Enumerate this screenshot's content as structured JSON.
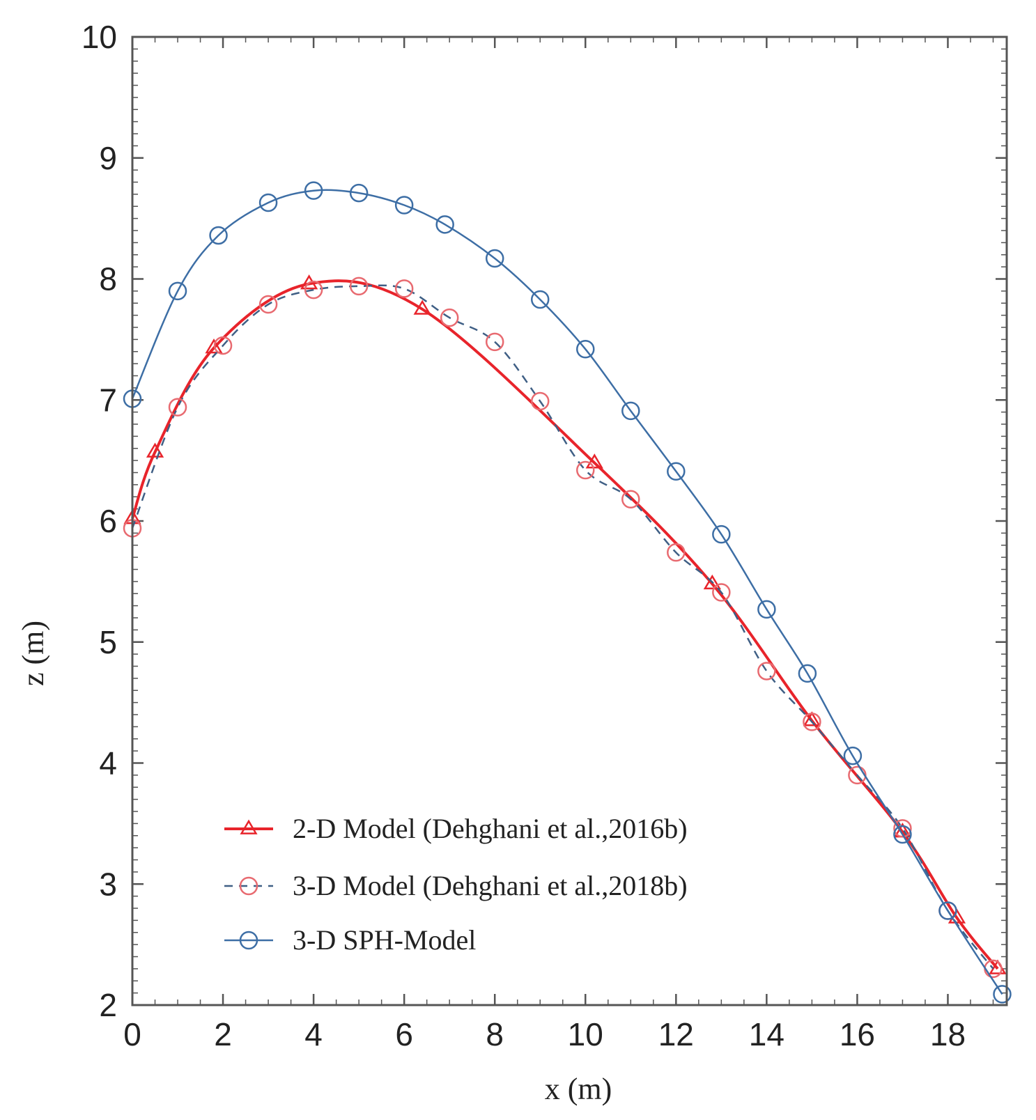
{
  "chart_data": {
    "type": "line",
    "title": "",
    "xlabel": "x (m)",
    "ylabel": "z (m)",
    "xlim": [
      0,
      19.3
    ],
    "ylim": [
      2,
      10
    ],
    "xticks": [
      0,
      2,
      4,
      6,
      8,
      10,
      12,
      14,
      16,
      18
    ],
    "yticks": [
      2,
      3,
      4,
      5,
      6,
      7,
      8,
      9,
      10
    ],
    "grid": false,
    "legend_position": "bottom-left",
    "series": [
      {
        "name": "2-D Model (Dehghani et al.,2016b)",
        "color": "#e8242b",
        "line_style": "solid",
        "marker": "triangle-icon",
        "points": [
          [
            0,
            6.02
          ],
          [
            0.5,
            6.57
          ],
          [
            1.8,
            7.43
          ],
          [
            3.9,
            7.96
          ],
          [
            6.4,
            7.75
          ],
          [
            10.2,
            6.48
          ],
          [
            12.8,
            5.48
          ],
          [
            15.0,
            4.35
          ],
          [
            17.0,
            3.43
          ],
          [
            18.2,
            2.72
          ],
          [
            19.1,
            2.3
          ]
        ]
      },
      {
        "name": "3-D Model (Dehghani et al.,2018b)",
        "color": "#e86a70",
        "line_color": "#3f5f85",
        "line_style": "dashed",
        "marker": "circle-icon",
        "points": [
          [
            0,
            5.94
          ],
          [
            1.0,
            6.94
          ],
          [
            2.0,
            7.45
          ],
          [
            3.0,
            7.79
          ],
          [
            4.0,
            7.91
          ],
          [
            5.0,
            7.94
          ],
          [
            6.0,
            7.92
          ],
          [
            7.0,
            7.68
          ],
          [
            8.0,
            7.48
          ],
          [
            9.0,
            6.99
          ],
          [
            10.0,
            6.42
          ],
          [
            11.0,
            6.18
          ],
          [
            12.0,
            5.74
          ],
          [
            13.0,
            5.41
          ],
          [
            14.0,
            4.76
          ],
          [
            15.0,
            4.34
          ],
          [
            16.0,
            3.9
          ],
          [
            17.0,
            3.46
          ],
          [
            18.0,
            2.78
          ],
          [
            19.0,
            2.3
          ]
        ]
      },
      {
        "name": "3-D SPH-Model",
        "color": "#3d6ea5",
        "line_style": "solid",
        "marker": "circle-icon",
        "points": [
          [
            0,
            7.01
          ],
          [
            1.0,
            7.9
          ],
          [
            1.9,
            8.36
          ],
          [
            3.0,
            8.63
          ],
          [
            4.0,
            8.73
          ],
          [
            5.0,
            8.71
          ],
          [
            6.0,
            8.61
          ],
          [
            6.9,
            8.45
          ],
          [
            8.0,
            8.17
          ],
          [
            9.0,
            7.83
          ],
          [
            10.0,
            7.42
          ],
          [
            11.0,
            6.91
          ],
          [
            12.0,
            6.41
          ],
          [
            13.0,
            5.89
          ],
          [
            14.0,
            5.27
          ],
          [
            14.9,
            4.74
          ],
          [
            15.9,
            4.06
          ],
          [
            17.0,
            3.41
          ],
          [
            18.0,
            2.78
          ],
          [
            19.2,
            2.09
          ]
        ]
      }
    ]
  }
}
